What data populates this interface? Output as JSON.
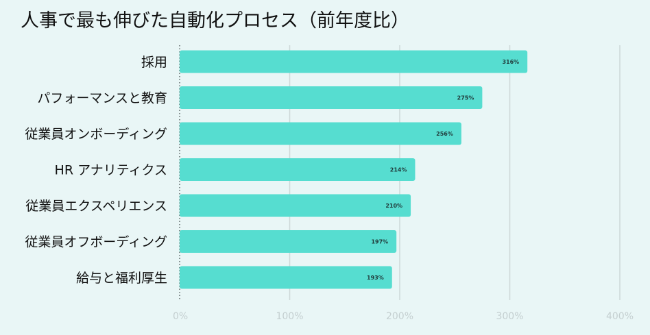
{
  "chart_data": {
    "type": "bar",
    "orientation": "horizontal",
    "title": "人事で最も伸びた自動化プロセス（前年度比）",
    "categories": [
      "採用",
      "パフォーマンスと教育",
      "従業員オンボーディング",
      "HR アナリティクス",
      "従業員エクスペリエンス",
      "従業員オフボーディング",
      "給与と福利厚生"
    ],
    "values": [
      316,
      275,
      256,
      214,
      210,
      197,
      193
    ],
    "data_labels": [
      "316%",
      "275%",
      "256%",
      "214%",
      "210%",
      "197%",
      "193%"
    ],
    "xlim": [
      0,
      400
    ],
    "x_ticks": [
      0,
      100,
      200,
      300,
      400
    ],
    "x_tick_labels": [
      "0%",
      "100%",
      "200%",
      "300%",
      "400%"
    ],
    "grid": true,
    "bar_color": "#56ddd0",
    "grid_color": "#cdd8d8",
    "xlabel": "",
    "ylabel": ""
  }
}
